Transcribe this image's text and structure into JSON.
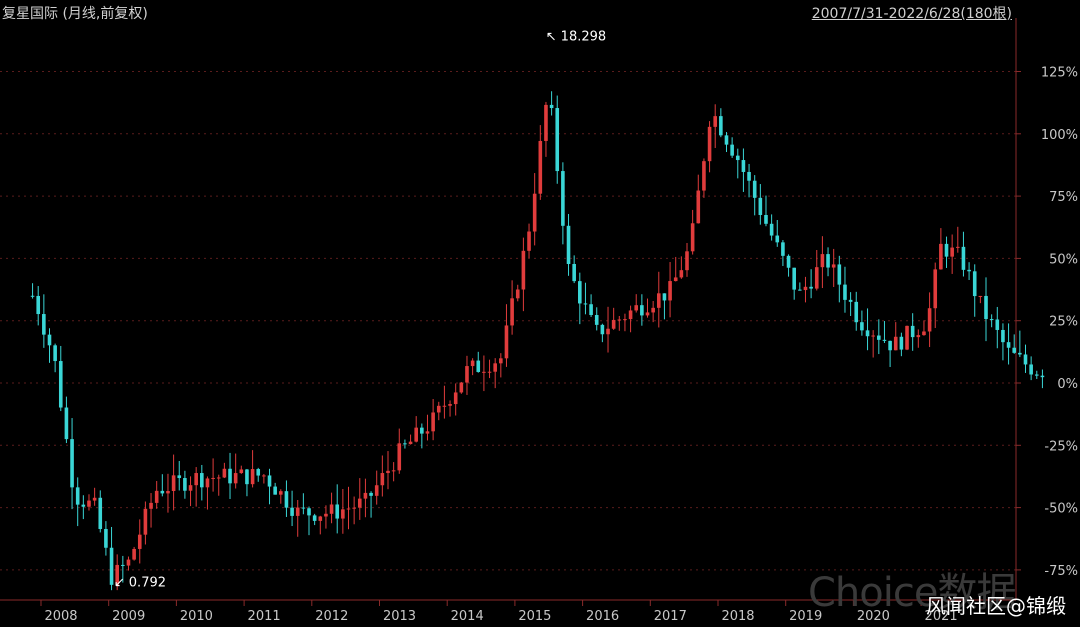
{
  "header": {
    "title": "复星国际 (月线,前复权)",
    "range": "2007/7/31-2022/6/28(180根)"
  },
  "watermark": "Choice数据",
  "footer": "风闻社区@锦缎",
  "colors": {
    "up": "#e03c3c",
    "down": "#3ad6d6",
    "grid": "#5a1c1c",
    "axis": "#8a2a2a",
    "text": "#c8c8c8"
  },
  "chart_data": {
    "type": "candlestick",
    "y_unit": "%",
    "y_range": [
      -85,
      145
    ],
    "y_ticks": [
      -75,
      -50,
      -25,
      0,
      25,
      50,
      75,
      100,
      125
    ],
    "y_tick_labels": [
      "-75%",
      "-50%",
      "-25%",
      "0%",
      "25%",
      "50%",
      "75%",
      "100%",
      "125%"
    ],
    "x_ticks": [
      "2008",
      "2009",
      "2010",
      "2011",
      "2012",
      "2013",
      "2014",
      "2015",
      "2016",
      "2017",
      "2018",
      "2019",
      "2020",
      "2021"
    ],
    "annotations": [
      {
        "text": "18.298",
        "label": "max",
        "year": 2015.1
      },
      {
        "text": "0.792",
        "label": "min",
        "year": 2008.75
      }
    ],
    "series_sampled_percent_close": [
      {
        "year": 2007.6,
        "value": 35
      },
      {
        "year": 2007.9,
        "value": 10
      },
      {
        "year": 2008.2,
        "value": -45
      },
      {
        "year": 2008.5,
        "value": -50
      },
      {
        "year": 2008.75,
        "value": -78
      },
      {
        "year": 2009.0,
        "value": -72
      },
      {
        "year": 2009.4,
        "value": -43
      },
      {
        "year": 2010.0,
        "value": -38
      },
      {
        "year": 2011.0,
        "value": -37
      },
      {
        "year": 2011.5,
        "value": -52
      },
      {
        "year": 2012.0,
        "value": -52
      },
      {
        "year": 2012.5,
        "value": -48
      },
      {
        "year": 2013.0,
        "value": -28
      },
      {
        "year": 2013.5,
        "value": -15
      },
      {
        "year": 2014.0,
        "value": 5
      },
      {
        "year": 2014.5,
        "value": 10
      },
      {
        "year": 2014.9,
        "value": 60
      },
      {
        "year": 2015.2,
        "value": 118
      },
      {
        "year": 2015.5,
        "value": 45
      },
      {
        "year": 2015.9,
        "value": 20
      },
      {
        "year": 2016.5,
        "value": 30
      },
      {
        "year": 2017.0,
        "value": 37
      },
      {
        "year": 2017.3,
        "value": 55
      },
      {
        "year": 2017.6,
        "value": 110
      },
      {
        "year": 2018.0,
        "value": 90
      },
      {
        "year": 2018.4,
        "value": 65
      },
      {
        "year": 2018.9,
        "value": 35
      },
      {
        "year": 2019.3,
        "value": 50
      },
      {
        "year": 2019.8,
        "value": 25
      },
      {
        "year": 2020.3,
        "value": 15
      },
      {
        "year": 2020.8,
        "value": 25
      },
      {
        "year": 2021.0,
        "value": 55
      },
      {
        "year": 2021.3,
        "value": 50
      },
      {
        "year": 2021.6,
        "value": 30
      },
      {
        "year": 2022.0,
        "value": 12
      },
      {
        "year": 2022.4,
        "value": 5
      }
    ]
  }
}
